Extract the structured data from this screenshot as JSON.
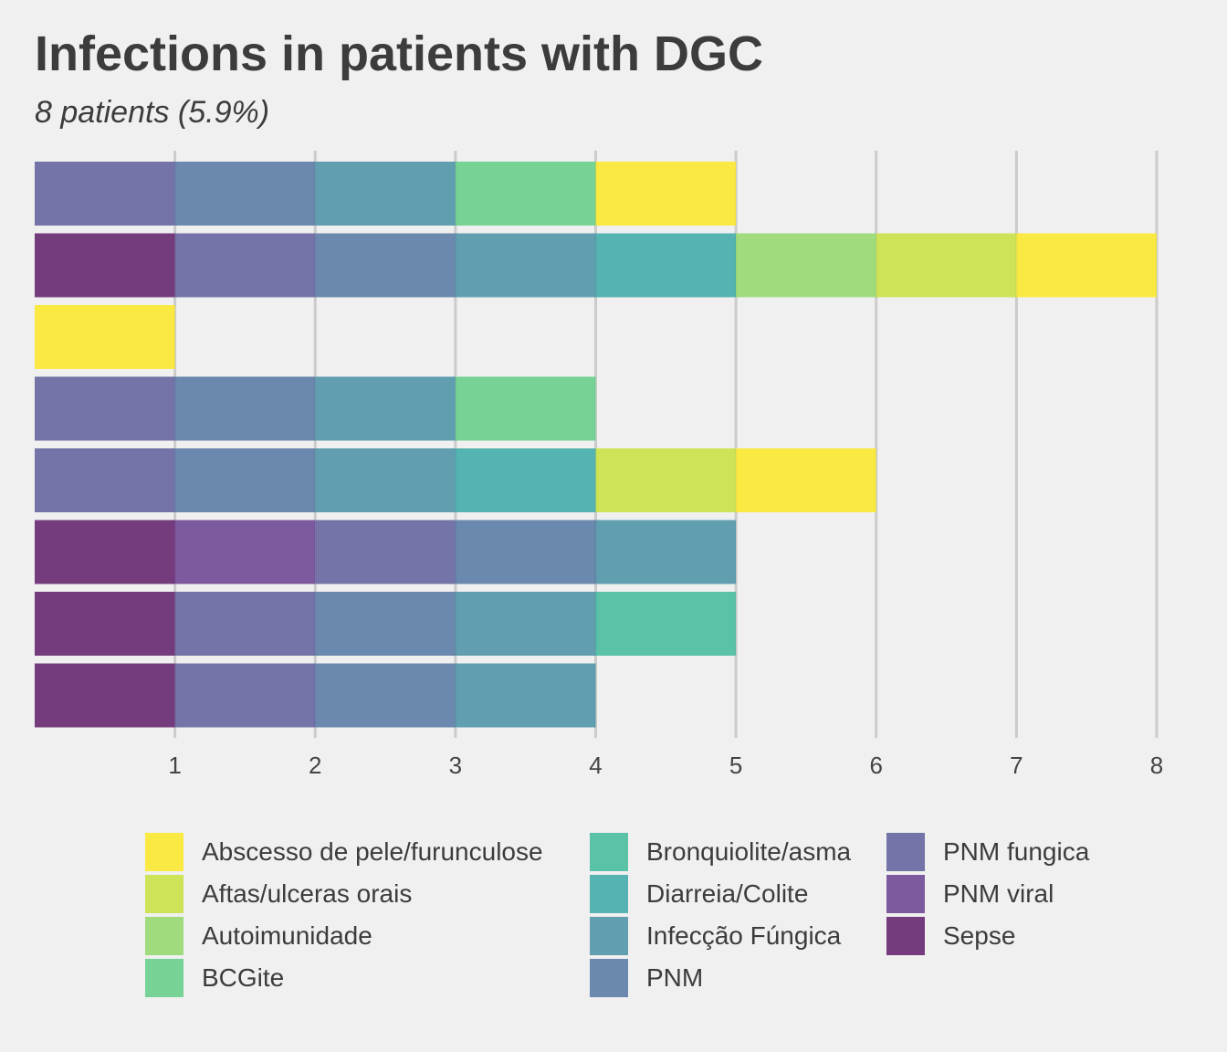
{
  "title": "Infections in patients with DGC",
  "subtitle": "8 patients (5.9%)",
  "chart_data": {
    "type": "bar",
    "orientation": "horizontal",
    "stacked": true,
    "title": "Infections in patients with DGC",
    "subtitle": "8 patients (5.9%)",
    "xlabel": "",
    "ylabel": "",
    "xlim": [
      0,
      8
    ],
    "x_ticks": [
      1,
      2,
      3,
      4,
      5,
      6,
      7,
      8
    ],
    "grid": "vertical",
    "legend_position": "bottom",
    "categories": [
      "Sepse",
      "PNM viral",
      "PNM fungica",
      "PNM",
      "Infecção Fúngica",
      "Diarreia/Colite",
      "Bronquiolite/asma",
      "BCGite",
      "Autoimunidade",
      "Aftas/ulceras orais",
      "Abscesso de pele/furunculose"
    ],
    "colors": {
      "Abscesso de pele/furunculose": "#fde725",
      "Aftas/ulceras orais": "#c8e03c",
      "Autoimunidade": "#92d86a",
      "BCGite": "#60cd85",
      "Bronquiolite/asma": "#3fba9a",
      "Diarreia/Colite": "#3aa8a6",
      "Infecção Fúngica": "#4890a5",
      "PNM": "#5475a2",
      "PNM fungica": "#5e5e9c",
      "PNM viral": "#683e8e",
      "Sepse": "#5f1c68"
    },
    "bar_opacity": 0.85,
    "bars": [
      [
        "PNM fungica",
        "PNM",
        "Infecção Fúngica",
        "BCGite",
        "Abscesso de pele/furunculose"
      ],
      [
        "Sepse",
        "PNM fungica",
        "PNM",
        "Infecção Fúngica",
        "Diarreia/Colite",
        "Autoimunidade",
        "Aftas/ulceras orais",
        "Abscesso de pele/furunculose"
      ],
      [
        "Abscesso de pele/furunculose"
      ],
      [
        "PNM fungica",
        "PNM",
        "Infecção Fúngica",
        "BCGite"
      ],
      [
        "PNM fungica",
        "PNM",
        "Infecção Fúngica",
        "Diarreia/Colite",
        "Aftas/ulceras orais",
        "Abscesso de pele/furunculose"
      ],
      [
        "Sepse",
        "PNM viral",
        "PNM fungica",
        "PNM",
        "Infecção Fúngica"
      ],
      [
        "Sepse",
        "PNM fungica",
        "PNM",
        "Infecção Fúngica",
        "Bronquiolite/asma"
      ],
      [
        "Sepse",
        "PNM fungica",
        "PNM",
        "Infecção Fúngica"
      ]
    ]
  },
  "legend": {
    "items": [
      "Abscesso de pele/furunculose",
      "Aftas/ulceras orais",
      "Autoimunidade",
      "BCGite",
      "Bronquiolite/asma",
      "Diarreia/Colite",
      "Infecção Fúngica",
      "PNM",
      "PNM fungica",
      "PNM viral",
      "Sepse"
    ]
  }
}
